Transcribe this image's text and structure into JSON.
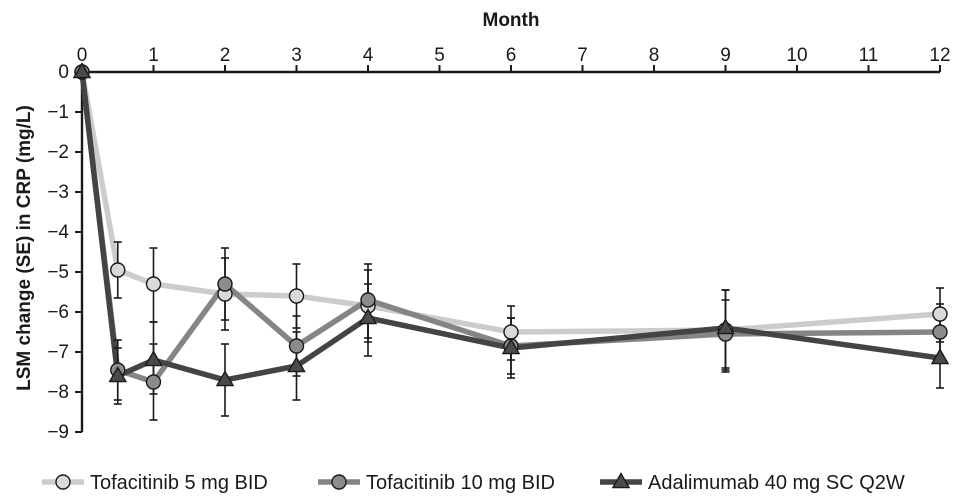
{
  "chart_data": {
    "type": "line",
    "title": "",
    "xlabel": "Month",
    "ylabel": "LSM change (SE) in CRP (mg/L)",
    "x_axis_position": "top",
    "xlim": [
      0,
      12
    ],
    "ylim": [
      -9,
      0
    ],
    "xticks": [
      0,
      1,
      2,
      3,
      4,
      5,
      6,
      7,
      8,
      9,
      10,
      11,
      12
    ],
    "yticks": [
      0,
      -1,
      -2,
      -3,
      -4,
      -5,
      -6,
      -7,
      -8,
      -9
    ],
    "ytick_labels": [
      "0",
      "−1",
      "−2",
      "−3",
      "−4",
      "−5",
      "−6",
      "−7",
      "−8",
      "−9"
    ],
    "grid": false,
    "legend_position": "bottom",
    "series": [
      {
        "name": "Tofacitinib 5 mg BID",
        "color": "#cccccc",
        "marker": "circle",
        "marker_fill": "#d9d9d9",
        "x": [
          0,
          0.5,
          1,
          2,
          3,
          4,
          6,
          9,
          12
        ],
        "y": [
          0,
          -4.95,
          -5.3,
          -5.55,
          -5.6,
          -5.85,
          -6.5,
          -6.45,
          -6.05
        ],
        "err_low": [
          0,
          -5.65,
          -6.25,
          -6.45,
          -6.4,
          -6.75,
          -7.2,
          -7.5,
          -6.75
        ],
        "err_high": [
          0,
          -4.25,
          -4.4,
          -4.65,
          -4.8,
          -4.95,
          -5.85,
          -5.45,
          -5.4
        ]
      },
      {
        "name": "Tofacitinib 10 mg BID",
        "color": "#858585",
        "marker": "circle",
        "marker_fill": "#8c8c8c",
        "x": [
          0,
          0.5,
          1,
          2,
          3,
          4,
          6,
          9,
          12
        ],
        "y": [
          0,
          -7.45,
          -7.75,
          -5.3,
          -6.85,
          -5.7,
          -6.85,
          -6.55,
          -6.5
        ],
        "err_low": [
          0,
          -8.2,
          -8.7,
          -6.2,
          -7.6,
          -6.65,
          -7.55,
          -7.4,
          -7.2
        ],
        "err_high": [
          0,
          -6.7,
          -6.8,
          -4.4,
          -6.1,
          -4.8,
          -6.15,
          -5.7,
          -5.8
        ]
      },
      {
        "name": "Adalimumab 40 mg SC Q2W",
        "color": "#444444",
        "marker": "triangle",
        "marker_fill": "#4a4a4a",
        "x": [
          0,
          0.5,
          1,
          2,
          3,
          4,
          6,
          9,
          12
        ],
        "y": [
          0,
          -7.6,
          -7.2,
          -7.7,
          -7.35,
          -6.15,
          -6.9,
          -6.4,
          -7.15
        ],
        "err_low": [
          0,
          -8.3,
          -8.05,
          -8.6,
          -8.2,
          -7.1,
          -7.65,
          -7.45,
          -7.9
        ],
        "err_high": [
          0,
          -6.9,
          -6.25,
          -6.8,
          -6.5,
          -5.3,
          -6.15,
          -5.45,
          -6.45
        ]
      }
    ]
  }
}
